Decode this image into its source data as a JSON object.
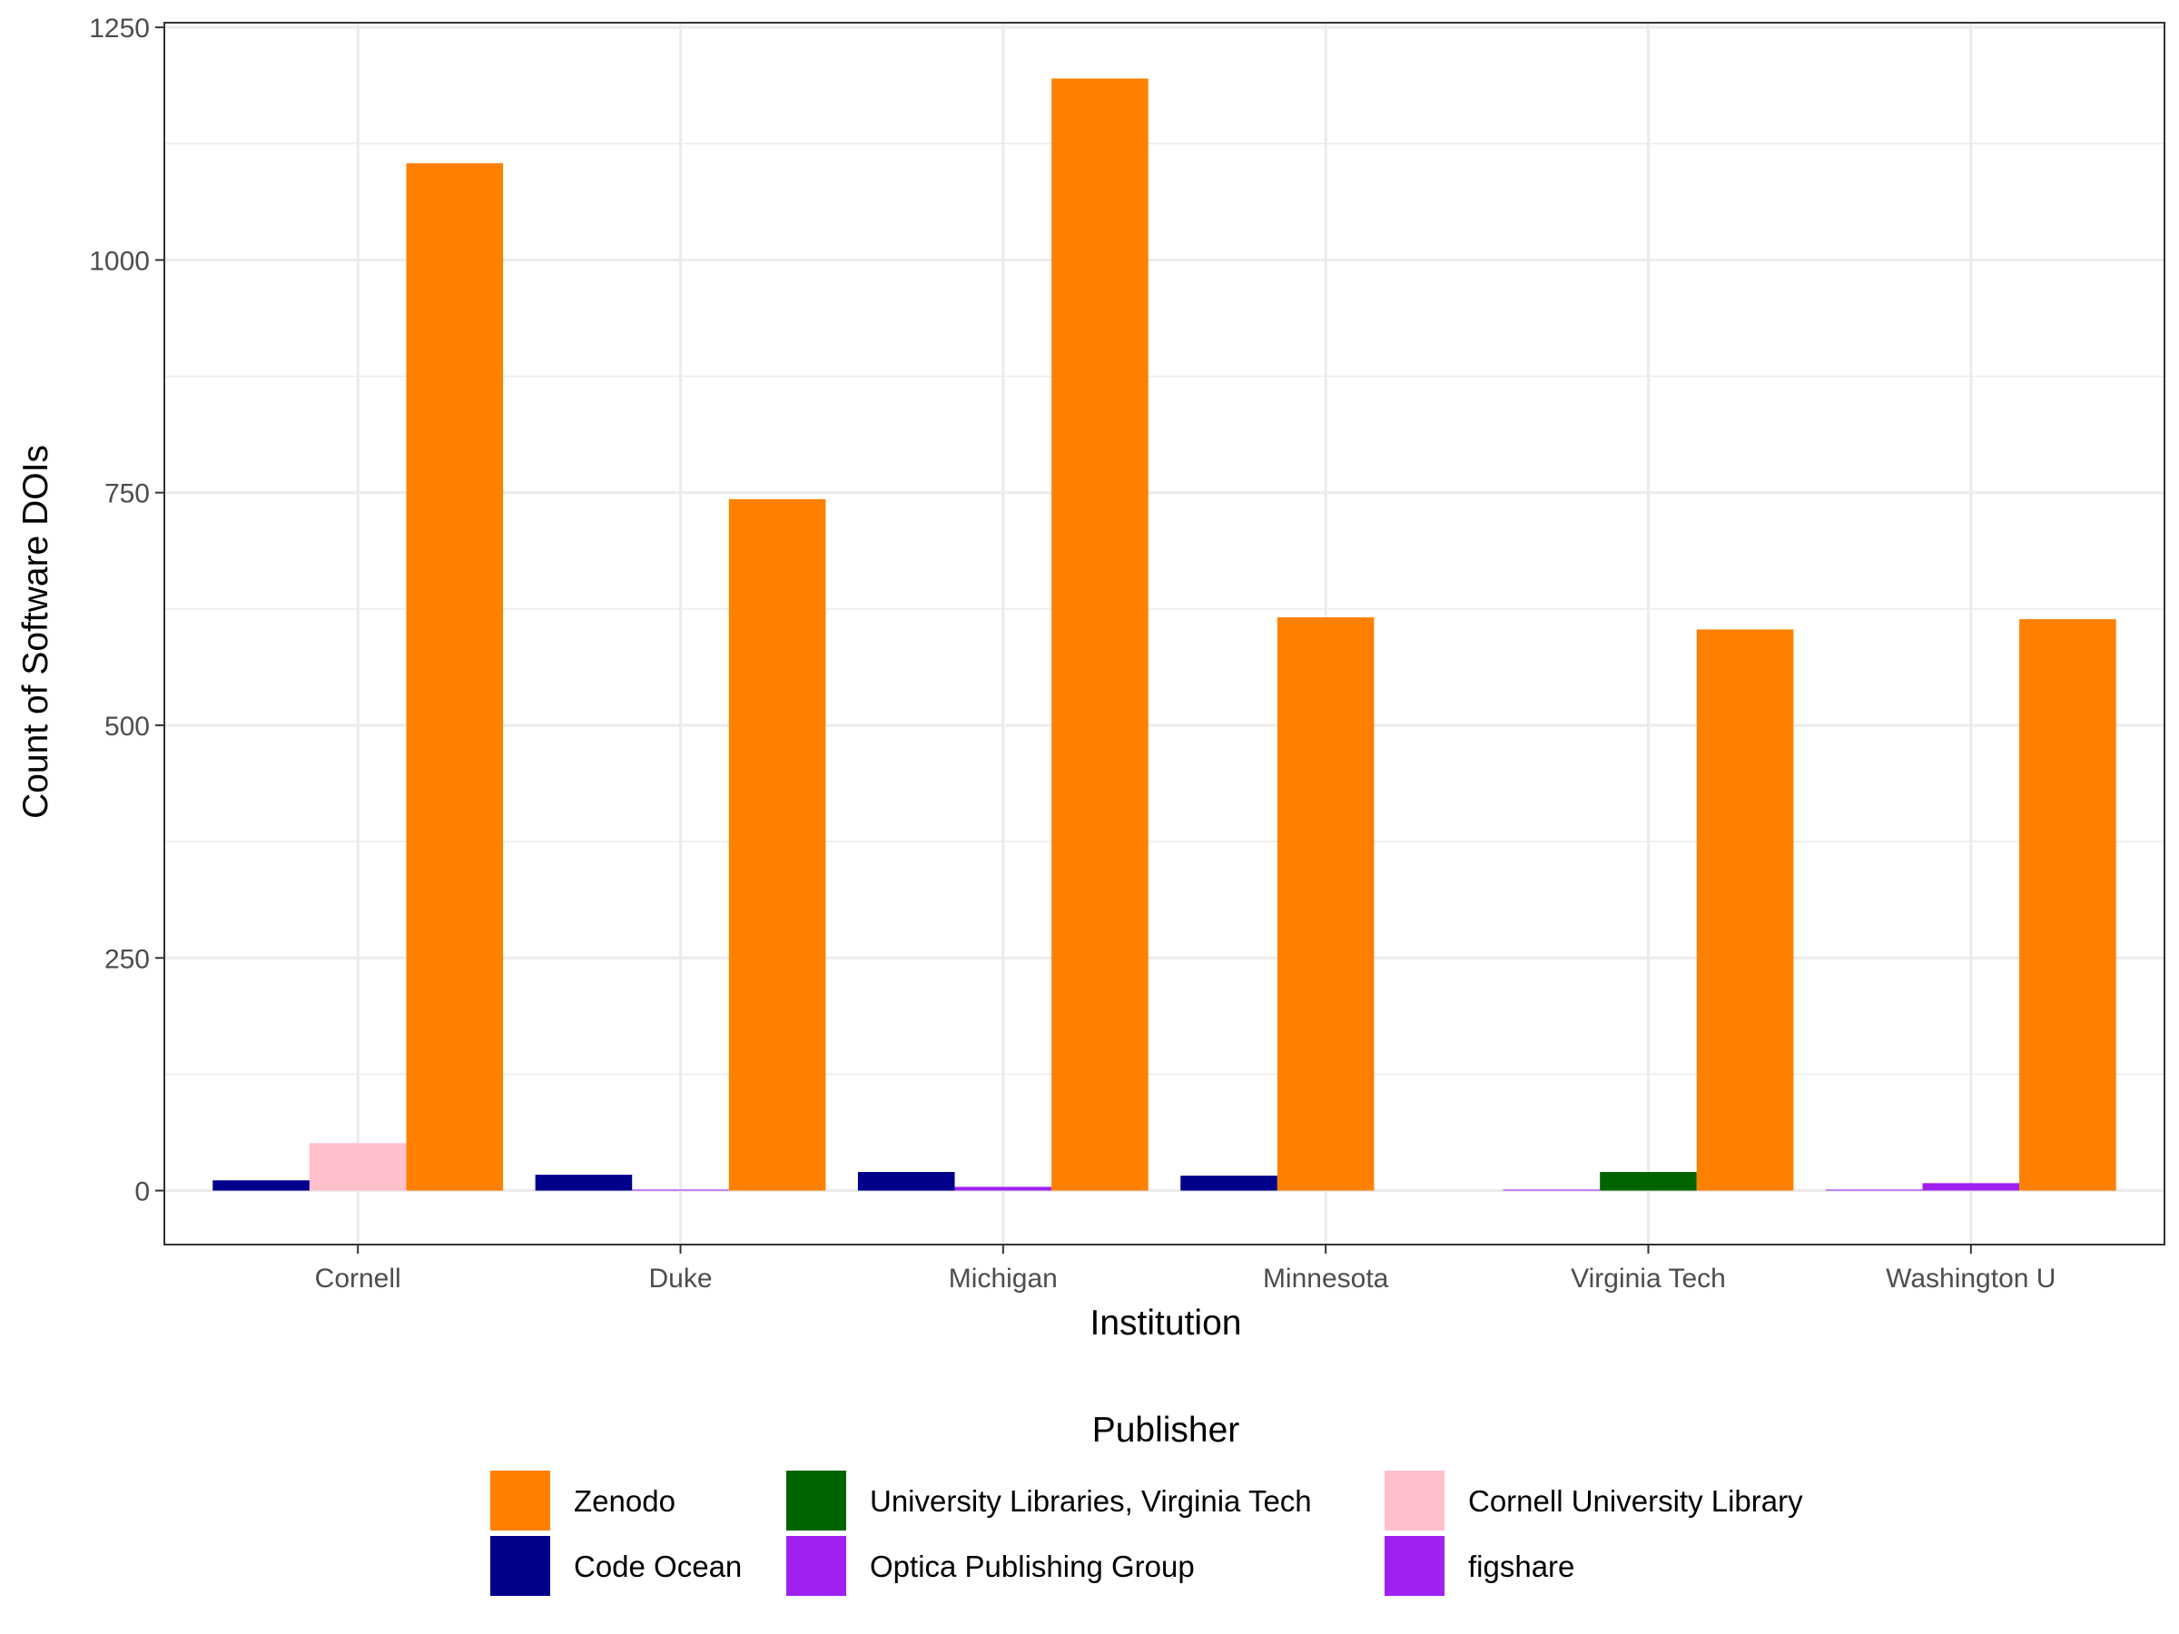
{
  "chart_data": {
    "type": "bar",
    "xlabel": "Institution",
    "ylabel": "Count of Software DOIs",
    "ylim": [
      -58,
      1255
    ],
    "yticks": [
      0,
      250,
      500,
      750,
      1000,
      1250
    ],
    "grid": true,
    "legend_position": "bottom",
    "legend_title": "Publisher",
    "categories": [
      "Cornell",
      "Duke",
      "Michigan",
      "Minnesota",
      "Virginia Tech",
      "Washington U"
    ],
    "bar_groups": [
      {
        "category": "Cornell",
        "bars": [
          {
            "publisher": "Code Ocean",
            "value": 11
          },
          {
            "publisher": "Cornell University Library",
            "value": 51
          },
          {
            "publisher": "Zenodo",
            "value": 1104
          }
        ]
      },
      {
        "category": "Duke",
        "bars": [
          {
            "publisher": "Code Ocean",
            "value": 17
          },
          {
            "publisher": "Optica Publishing Group",
            "value": 1
          },
          {
            "publisher": "Zenodo",
            "value": 743
          }
        ]
      },
      {
        "category": "Michigan",
        "bars": [
          {
            "publisher": "Code Ocean",
            "value": 20
          },
          {
            "publisher": "Optica Publishing Group",
            "value": 4
          },
          {
            "publisher": "Zenodo",
            "value": 1195
          }
        ]
      },
      {
        "category": "Minnesota",
        "bars": [
          {
            "publisher": "Code Ocean",
            "value": 16
          },
          {
            "publisher": "Zenodo",
            "value": 616
          }
        ]
      },
      {
        "category": "Virginia Tech",
        "bars": [
          {
            "publisher": "figshare",
            "value": 1
          },
          {
            "publisher": "University Libraries, Virginia Tech",
            "value": 20
          },
          {
            "publisher": "Zenodo",
            "value": 603
          }
        ]
      },
      {
        "category": "Washington U",
        "bars": [
          {
            "publisher": "figshare",
            "value": 1
          },
          {
            "publisher": "Optica Publishing Group",
            "value": 8
          },
          {
            "publisher": "Zenodo",
            "value": 614
          }
        ]
      }
    ],
    "legend": [
      {
        "name": "Zenodo",
        "color": "#FF8000"
      },
      {
        "name": "Code Ocean",
        "color": "#00008B"
      },
      {
        "name": "University Libraries, Virginia Tech",
        "color": "#006400"
      },
      {
        "name": "Optica Publishing Group",
        "color": "#A020F0"
      },
      {
        "name": "Cornell University Library",
        "color": "#FFC0CB"
      },
      {
        "name": "figshare",
        "color": "#A020F0"
      }
    ]
  }
}
